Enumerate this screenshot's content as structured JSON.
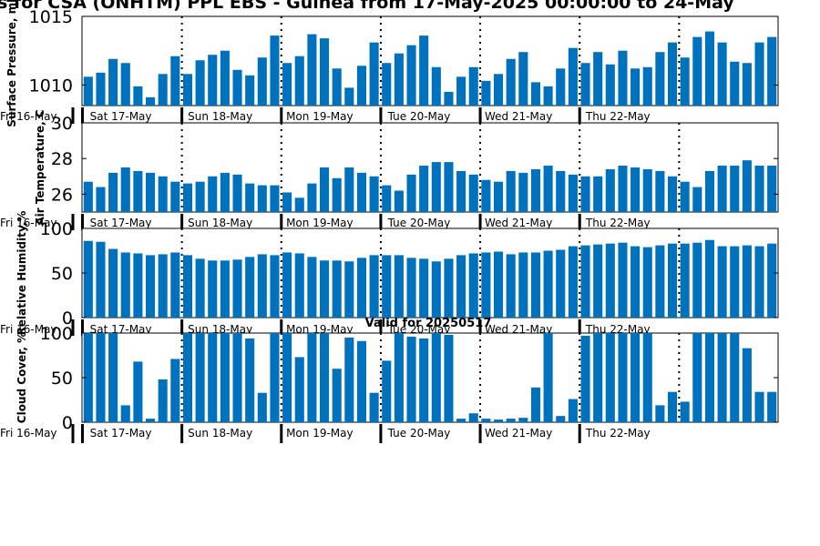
{
  "figure": {
    "title": "s for CSA (ONHTM) PPL EBS  - Guinea from 17-May-2025 00:00:00 to 24-May",
    "valid_text": "Valid for 20250517",
    "start_label": "Fri 16-May",
    "day_labels": [
      "Sat 17-May",
      "Sun 18-May",
      "Mon 19-May",
      "Tue 20-May",
      "Wed 21-May",
      "Thu 22-May"
    ],
    "bar_color": "#0072bd"
  },
  "chart_data": [
    {
      "type": "bar",
      "ylabel": "Surface Pressure, mb",
      "ylim": [
        1008.5,
        1015
      ],
      "yticks": [
        1010,
        1015
      ],
      "values": [
        1010.6,
        1010.9,
        1011.9,
        1011.6,
        1009.9,
        1009.1,
        1010.8,
        1012.1,
        1010.8,
        1011.8,
        1012.2,
        1012.5,
        1011.1,
        1010.7,
        1012.0,
        1013.6,
        1011.6,
        1012.1,
        1013.7,
        1013.4,
        1011.2,
        1009.8,
        1011.4,
        1013.1,
        1011.6,
        1012.3,
        1012.9,
        1013.6,
        1011.3,
        1009.5,
        1010.6,
        1011.3,
        1010.3,
        1010.8,
        1011.9,
        1012.4,
        1010.2,
        1009.9,
        1011.2,
        1012.7,
        1011.6,
        1012.4,
        1011.5,
        1012.5,
        1011.2,
        1011.3,
        1012.4,
        1013.1,
        1012.0,
        1013.5,
        1013.9,
        1013.1,
        1011.7,
        1011.6,
        1013.1,
        1013.5
      ]
    },
    {
      "type": "bar",
      "ylabel": "Air Temperature, C",
      "ylim": [
        25,
        30
      ],
      "yticks": [
        26,
        28,
        30
      ],
      "values": [
        26.7,
        26.4,
        27.2,
        27.5,
        27.3,
        27.2,
        27.0,
        26.7,
        26.6,
        26.7,
        27.0,
        27.2,
        27.1,
        26.6,
        26.5,
        26.5,
        26.1,
        25.8,
        26.6,
        27.5,
        26.9,
        27.5,
        27.2,
        27.0,
        26.5,
        26.2,
        27.1,
        27.6,
        27.8,
        27.8,
        27.3,
        27.1,
        26.8,
        26.7,
        27.3,
        27.2,
        27.4,
        27.6,
        27.3,
        27.1,
        27.0,
        27.0,
        27.4,
        27.6,
        27.5,
        27.4,
        27.3,
        27.0,
        26.7,
        26.4,
        27.3,
        27.6,
        27.6,
        27.9,
        27.6,
        27.6
      ]
    },
    {
      "type": "bar",
      "ylabel": "Relative Humidity,%",
      "ylim": [
        0,
        100
      ],
      "yticks": [
        0,
        50,
        100
      ],
      "values": [
        86,
        85,
        77,
        73,
        72,
        70,
        71,
        73,
        70,
        66,
        64,
        64,
        65,
        68,
        71,
        70,
        73,
        72,
        68,
        64,
        64,
        63,
        67,
        70,
        70,
        70,
        67,
        66,
        63,
        66,
        70,
        72,
        73,
        74,
        71,
        73,
        73,
        75,
        76,
        80,
        81,
        82,
        83,
        84,
        80,
        79,
        81,
        83,
        83,
        84,
        87,
        80,
        80,
        81,
        80,
        83
      ]
    },
    {
      "type": "bar",
      "ylabel": "Cloud Cover, %",
      "ylim": [
        0,
        100
      ],
      "yticks": [
        0,
        50,
        100
      ],
      "values": [
        100,
        100,
        100,
        19,
        68,
        4,
        48,
        71,
        100,
        100,
        100,
        100,
        100,
        94,
        33,
        100,
        100,
        73,
        100,
        100,
        60,
        95,
        91,
        33,
        69,
        100,
        96,
        94,
        100,
        98,
        4,
        10,
        4,
        3,
        4,
        5,
        39,
        100,
        7,
        26,
        97,
        100,
        100,
        100,
        100,
        100,
        19,
        34,
        23,
        100,
        100,
        100,
        100,
        83,
        34,
        34
      ]
    }
  ]
}
